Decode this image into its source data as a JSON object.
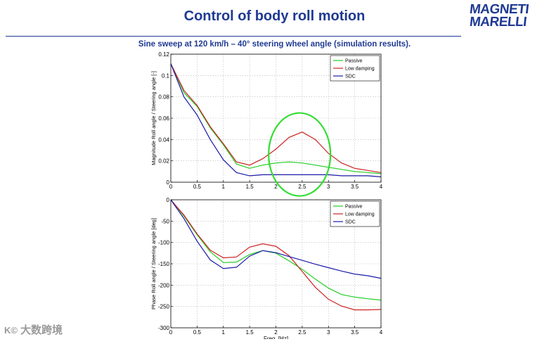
{
  "slide": {
    "title": "Control of body roll motion",
    "subtitle": "Sine sweep at 120 km/h – 40° steering wheel angle (simulation results).",
    "logo_line1": "MAGNETI",
    "logo_line2": "MARELLI",
    "watermark_logo": "K©",
    "watermark": "大数跨境"
  },
  "colors": {
    "passive": "#22cc22",
    "low_damping": "#cc2222",
    "sdc": "#1a1aaa",
    "highlight": "#33dd33",
    "brand": "#1f3a93"
  },
  "chart_data": [
    {
      "type": "line",
      "ylabel": "Magnitude Roll angle / Steering angle [-]",
      "xlabel": "",
      "xlim": [
        0,
        4
      ],
      "ylim": [
        0,
        0.12
      ],
      "xticks": [
        0,
        0.5,
        1,
        1.5,
        2,
        2.5,
        3,
        3.5,
        4
      ],
      "xtick_labels": [
        "0",
        "0.5",
        "1",
        "1.5",
        "2",
        "2.5",
        "3",
        "3.5",
        "4"
      ],
      "yticks": [
        0,
        0.02,
        0.04,
        0.06,
        0.08,
        0.1,
        0.12
      ],
      "ytick_labels": [
        "0",
        "0.02",
        "0.04",
        "0.06",
        "0.08",
        "0.1",
        "0.12"
      ],
      "legend": [
        "Passive",
        "Low damping",
        "SDC"
      ],
      "legend_position": "top-right",
      "annotation": "ellipse highlighting the low-damping resonance peak near 2.5 Hz",
      "highlight_center": [
        2.45,
        0.026
      ],
      "series": [
        {
          "name": "Passive",
          "x": [
            0,
            0.25,
            0.5,
            0.75,
            1,
            1.25,
            1.5,
            1.75,
            2,
            2.25,
            2.5,
            2.75,
            3,
            3.25,
            3.5,
            3.75,
            4
          ],
          "y": [
            0.111,
            0.084,
            0.071,
            0.051,
            0.035,
            0.017,
            0.013,
            0.016,
            0.018,
            0.019,
            0.018,
            0.016,
            0.014,
            0.012,
            0.01,
            0.009,
            0.008
          ]
        },
        {
          "name": "Low damping",
          "x": [
            0,
            0.25,
            0.5,
            0.75,
            1,
            1.25,
            1.5,
            1.75,
            2,
            2.25,
            2.5,
            2.75,
            3,
            3.25,
            3.5,
            3.75,
            4
          ],
          "y": [
            0.111,
            0.086,
            0.072,
            0.052,
            0.036,
            0.019,
            0.016,
            0.022,
            0.031,
            0.042,
            0.047,
            0.04,
            0.027,
            0.018,
            0.013,
            0.011,
            0.009
          ]
        },
        {
          "name": "SDC",
          "x": [
            0,
            0.25,
            0.5,
            0.75,
            1,
            1.25,
            1.5,
            1.75,
            2,
            2.25,
            2.5,
            2.75,
            3,
            3.25,
            3.5,
            3.75,
            4
          ],
          "y": [
            0.111,
            0.08,
            0.063,
            0.04,
            0.021,
            0.009,
            0.006,
            0.007,
            0.007,
            0.007,
            0.007,
            0.007,
            0.007,
            0.006,
            0.006,
            0.006,
            0.005
          ]
        }
      ]
    },
    {
      "type": "line",
      "ylabel": "Phase Roll angle / Steering angle [deg]",
      "xlabel": "Freq. [Hz]",
      "xlim": [
        0,
        4
      ],
      "ylim": [
        -300,
        0
      ],
      "xticks": [
        0,
        0.5,
        1,
        1.5,
        2,
        2.5,
        3,
        3.5,
        4
      ],
      "xtick_labels": [
        "0",
        "0.5",
        "1",
        "1.5",
        "2",
        "2.5",
        "3",
        "3.5",
        "4"
      ],
      "yticks": [
        -300,
        -250,
        -200,
        -150,
        -100,
        -50,
        0
      ],
      "ytick_labels": [
        "-300",
        "-250",
        "-200",
        "-150",
        "-100",
        "-50",
        "0"
      ],
      "legend": [
        "Passive",
        "Low damping",
        "SDC"
      ],
      "legend_position": "top-right",
      "series": [
        {
          "name": "Passive",
          "x": [
            0,
            0.25,
            0.5,
            0.75,
            1,
            1.25,
            1.5,
            1.75,
            2,
            2.25,
            2.5,
            2.75,
            3,
            3.25,
            3.5,
            3.75,
            4
          ],
          "y": [
            0,
            -38,
            -82,
            -122,
            -147,
            -146,
            -128,
            -119,
            -125,
            -143,
            -163,
            -186,
            -207,
            -222,
            -228,
            -232,
            -235
          ]
        },
        {
          "name": "Low damping",
          "x": [
            0,
            0.25,
            0.5,
            0.75,
            1,
            1.25,
            1.5,
            1.75,
            2,
            2.25,
            2.5,
            2.75,
            3,
            3.25,
            3.5,
            3.75,
            4
          ],
          "y": [
            0,
            -36,
            -80,
            -118,
            -136,
            -134,
            -111,
            -103,
            -109,
            -131,
            -168,
            -205,
            -233,
            -249,
            -258,
            -258,
            -257
          ]
        },
        {
          "name": "SDC",
          "x": [
            0,
            0.25,
            0.5,
            0.75,
            1,
            1.25,
            1.5,
            1.75,
            2,
            2.25,
            2.5,
            2.75,
            3,
            3.25,
            3.5,
            3.75,
            4
          ],
          "y": [
            0,
            -44,
            -97,
            -141,
            -161,
            -158,
            -132,
            -119,
            -124,
            -133,
            -142,
            -151,
            -159,
            -167,
            -174,
            -178,
            -184
          ]
        }
      ]
    }
  ]
}
